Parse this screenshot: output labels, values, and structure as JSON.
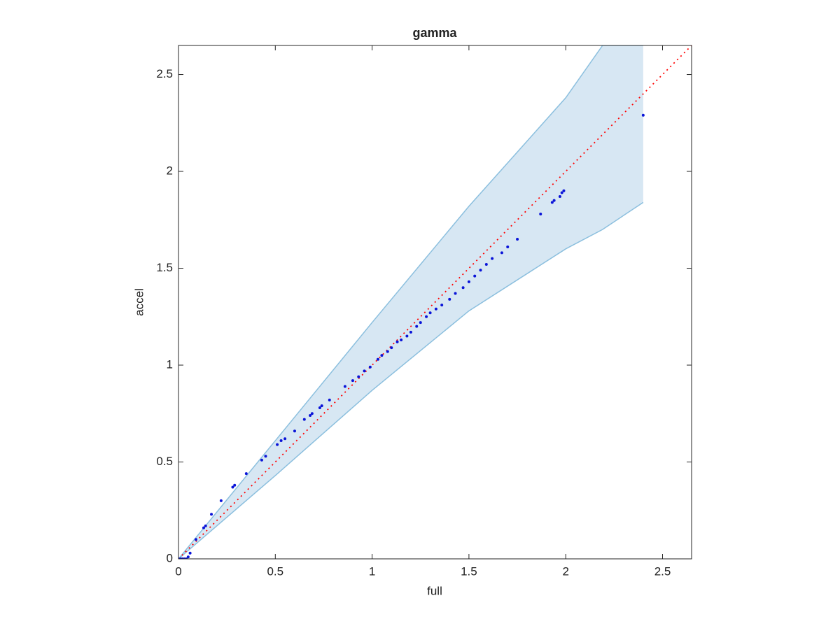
{
  "chart_data": {
    "type": "scatter",
    "title": "gamma",
    "xlabel": "full",
    "ylabel": "accel",
    "xlim": [
      0,
      2.65
    ],
    "ylim": [
      0,
      2.65
    ],
    "xticks": [
      0,
      0.5,
      1,
      1.5,
      2,
      2.5
    ],
    "yticks": [
      0,
      0.5,
      1,
      1.5,
      2,
      2.5
    ],
    "point_color": "#0a14d8",
    "reference_color": "#ff0000",
    "band": {
      "fill": "#d7e7f3",
      "edge": "#8bbfde",
      "x": [
        0,
        0.5,
        1,
        1.5,
        2,
        2.19,
        2.4
      ],
      "upper": [
        0,
        0.61,
        1.22,
        1.82,
        2.38,
        2.65,
        2.65
      ],
      "lower": [
        0,
        0.43,
        0.87,
        1.28,
        1.6,
        1.7,
        1.84
      ]
    },
    "x": [
      0,
      0.01,
      0.02,
      0.03,
      0.04,
      0.05,
      0.06,
      0.09,
      0.13,
      0.14,
      0.17,
      0.22,
      0.28,
      0.29,
      0.35,
      0.43,
      0.45,
      0.51,
      0.53,
      0.55,
      0.6,
      0.65,
      0.68,
      0.69,
      0.73,
      0.74,
      0.78,
      0.86,
      0.9,
      0.93,
      0.96,
      0.99,
      1.03,
      1.05,
      1.08,
      1.1,
      1.13,
      1.15,
      1.18,
      1.2,
      1.23,
      1.25,
      1.28,
      1.3,
      1.33,
      1.36,
      1.4,
      1.43,
      1.47,
      1.5,
      1.53,
      1.56,
      1.59,
      1.62,
      1.67,
      1.7,
      1.75,
      1.87,
      1.93,
      1.94,
      1.97,
      1.98,
      1.99,
      2.4
    ],
    "values": [
      0,
      0,
      0,
      0,
      0,
      0.01,
      0.03,
      0.1,
      0.16,
      0.17,
      0.23,
      0.3,
      0.37,
      0.38,
      0.44,
      0.51,
      0.53,
      0.59,
      0.61,
      0.62,
      0.66,
      0.72,
      0.74,
      0.75,
      0.78,
      0.79,
      0.82,
      0.89,
      0.92,
      0.94,
      0.97,
      0.99,
      1.03,
      1.05,
      1.07,
      1.09,
      1.12,
      1.13,
      1.15,
      1.17,
      1.2,
      1.22,
      1.25,
      1.27,
      1.29,
      1.31,
      1.34,
      1.37,
      1.4,
      1.43,
      1.46,
      1.49,
      1.52,
      1.55,
      1.58,
      1.61,
      1.65,
      1.78,
      1.84,
      1.85,
      1.87,
      1.89,
      1.9,
      2.29
    ]
  }
}
